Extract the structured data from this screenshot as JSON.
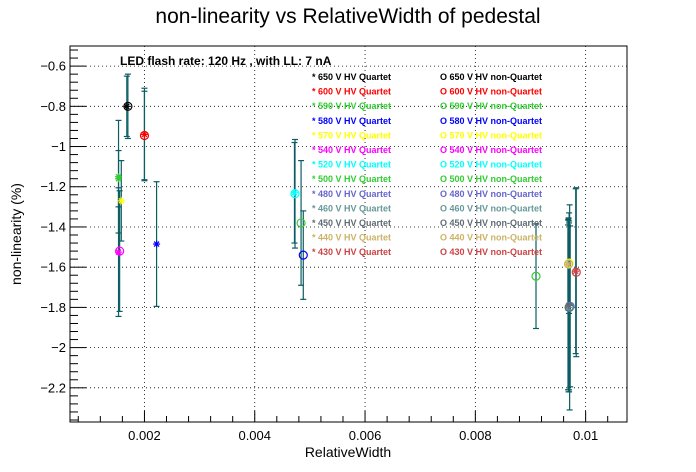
{
  "chart_data": {
    "type": "scatter",
    "title": "non-linearity vs RelativeWidth of pedestal",
    "xlabel": "RelativeWidth",
    "ylabel": "non-linearity (%)",
    "annotation": "LED flash rate: 120 Hz , with LL: 7 nA",
    "xlim": [
      0.00065,
      0.01075
    ],
    "ylim": [
      -2.37,
      -0.5
    ],
    "x_ticks": [
      0.002,
      0.004,
      0.006,
      0.008,
      0.01
    ],
    "x_tick_labels": [
      "0.002",
      "0.004",
      "0.006",
      "0.008",
      "0.01"
    ],
    "y_ticks": [
      -0.6,
      -0.8,
      -1,
      -1.2,
      -1.4,
      -1.6,
      -1.8,
      -2,
      -2.2
    ],
    "y_tick_labels": [
      "−0.6",
      "−0.8",
      "−1",
      "−1.2",
      "−1.4",
      "−1.6",
      "−1.8",
      "−2",
      "−2.2"
    ],
    "grid": true,
    "legend_position": "top-right",
    "errorbar_color": "#0b5d62",
    "series": [
      {
        "name": "* 650 V HV Quartet",
        "color": "#000000",
        "marker": "star",
        "points": [
          {
            "x": 0.00168,
            "y": -0.8,
            "err": 0.15
          }
        ]
      },
      {
        "name": "O 650 V HV non-Quartet",
        "color": "#000000",
        "marker": "circle",
        "points": [
          {
            "x": 0.0017,
            "y": -0.8,
            "err": 0.16
          }
        ]
      },
      {
        "name": "* 600 V HV Quartet",
        "color": "#ff0000",
        "marker": "star",
        "points": [
          {
            "x": 0.002,
            "y": -0.94,
            "err": 0.23
          }
        ]
      },
      {
        "name": "O 600 V HV non-Quartet",
        "color": "#ff0000",
        "marker": "circle",
        "points": [
          {
            "x": 0.002,
            "y": -0.945,
            "err": 0.22
          }
        ]
      },
      {
        "name": "* 590 V HV Quartet",
        "color": "#33cc33",
        "marker": "star",
        "points": [
          {
            "x": 0.00153,
            "y": -1.15,
            "err": 0.28
          }
        ]
      },
      {
        "name": "O 590 V HV non-Quartet",
        "color": "#33cc33",
        "marker": "circle",
        "points": [
          {
            "x": 0.0091,
            "y": -1.645,
            "err": 0.26
          }
        ]
      },
      {
        "name": "* 580 V HV Quartet",
        "color": "#0000ff",
        "marker": "star",
        "points": [
          {
            "x": 0.00222,
            "y": -1.485,
            "err": 0.31
          }
        ]
      },
      {
        "name": "O 580 V HV non-Quartet",
        "color": "#0000ff",
        "marker": "circle",
        "points": [
          {
            "x": 0.00488,
            "y": -1.54,
            "err": 0.22
          }
        ]
      },
      {
        "name": "* 570 V HV Quartet",
        "color": "#ffff00",
        "marker": "star",
        "points": [
          {
            "x": 0.00158,
            "y": -1.27,
            "err": 0.2
          }
        ]
      },
      {
        "name": "O 570 V HV non-Quartet",
        "color": "#ffff00",
        "marker": "circle",
        "points": [
          {
            "x": 0.0097,
            "y": -1.58,
            "err": 0.25
          }
        ]
      },
      {
        "name": "* 540 V HV Quartet",
        "color": "#ff00ff",
        "marker": "star",
        "points": [
          {
            "x": 0.00153,
            "y": -1.525,
            "err": 0.32
          }
        ]
      },
      {
        "name": "O 540 V HV non-Quartet",
        "color": "#ff00ff",
        "marker": "circle",
        "points": [
          {
            "x": 0.00155,
            "y": -1.52,
            "err": 0.3
          }
        ]
      },
      {
        "name": "* 520 V HV Quartet",
        "color": "#00ffff",
        "marker": "star",
        "points": [
          {
            "x": 0.00472,
            "y": -1.23,
            "err": 0.25
          }
        ]
      },
      {
        "name": "O 520 V HV non-Quartet",
        "color": "#00ffff",
        "marker": "circle",
        "points": [
          {
            "x": 0.00473,
            "y": -1.235,
            "err": 0.27
          }
        ]
      },
      {
        "name": "* 500 V HV Quartet",
        "color": "#33cc33",
        "marker": "star",
        "points": [
          {
            "x": 0.00153,
            "y": -1.16,
            "err": 0.14
          }
        ]
      },
      {
        "name": "O 500 V HV non-Quartet",
        "color": "#33cc33",
        "marker": "circle",
        "points": [
          {
            "x": 0.00484,
            "y": -1.38,
            "err": 0.31
          }
        ]
      },
      {
        "name": "* 480 V HV Quartet",
        "color": "#6666cc",
        "marker": "star",
        "points": [
          {
            "x": 0.0097,
            "y": -1.79,
            "err": 0.42
          }
        ]
      },
      {
        "name": "O 480 V HV non-Quartet",
        "color": "#6666cc",
        "marker": "circle",
        "points": [
          {
            "x": 0.00972,
            "y": -1.795,
            "err": 0.4
          }
        ]
      },
      {
        "name": "* 460 V HV Quartet",
        "color": "#669999",
        "marker": "star",
        "points": [
          {
            "x": 0.00968,
            "y": -1.8,
            "err": 0.41
          }
        ]
      },
      {
        "name": "O 460 V HV non-Quartet",
        "color": "#669999",
        "marker": "circle",
        "points": [
          {
            "x": 0.00971,
            "y": -1.8,
            "err": 0.51
          }
        ]
      },
      {
        "name": "* 450 V HV Quartet",
        "color": "#5f6b73",
        "marker": "star",
        "points": [
          {
            "x": 0.00969,
            "y": -1.79,
            "err": 0.43
          }
        ]
      },
      {
        "name": "O 450 V HV non-Quartet",
        "color": "#5f6b73",
        "marker": "circle",
        "points": [
          {
            "x": 0.0097,
            "y": -1.8,
            "err": 0.42
          }
        ]
      },
      {
        "name": "* 440 V HV Quartet",
        "color": "#ccb366",
        "marker": "star",
        "points": [
          {
            "x": 0.00968,
            "y": -1.585,
            "err": 0.22
          }
        ]
      },
      {
        "name": "O 440 V HV non-Quartet",
        "color": "#ccb366",
        "marker": "circle",
        "points": [
          {
            "x": 0.00969,
            "y": -1.585,
            "err": 0.23
          }
        ]
      },
      {
        "name": "* 430 V HV Quartet",
        "color": "#cc4444",
        "marker": "star",
        "points": [
          {
            "x": 0.00982,
            "y": -1.62,
            "err": 0.41
          }
        ]
      },
      {
        "name": "O 430 V HV non-Quartet",
        "color": "#cc4444",
        "marker": "circle",
        "points": [
          {
            "x": 0.00983,
            "y": -1.625,
            "err": 0.42
          }
        ]
      }
    ]
  }
}
